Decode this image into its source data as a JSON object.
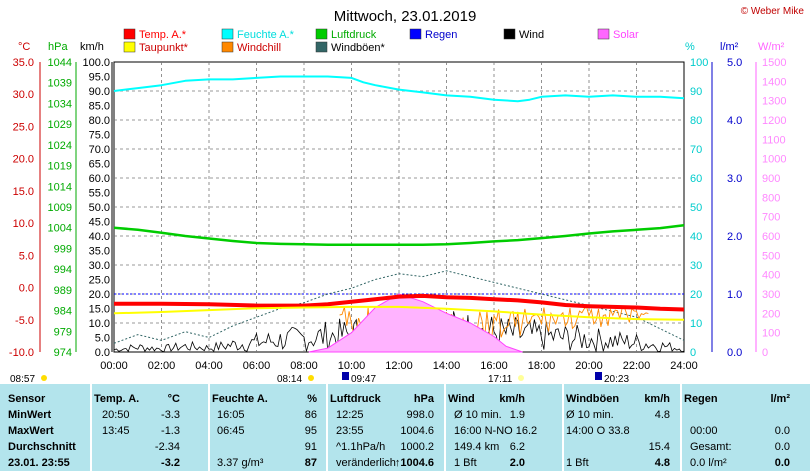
{
  "title": "Mittwoch, 23.01.2019",
  "credit": "© Weber Mike",
  "legend": [
    {
      "label": "Temp. A.*",
      "color": "#ff0000",
      "text_color": "#ff0000"
    },
    {
      "label": "Feuchte A.*",
      "color": "#00ffff",
      "text_color": "#00dddd"
    },
    {
      "label": "Luftdruck",
      "color": "#00cc00",
      "text_color": "#00aa00"
    },
    {
      "label": "Regen",
      "color": "#0000ff",
      "text_color": "#0000cc"
    },
    {
      "label": "Wind",
      "color": "#000000",
      "text_color": "#000000"
    },
    {
      "label": "Solar",
      "color": "#ff66ff",
      "text_color": "#ff44ff"
    },
    {
      "label": "Taupunkt*",
      "color": "#ffff00",
      "text_color": "#cc0000"
    },
    {
      "label": "Windchill",
      "color": "#ff8800",
      "text_color": "#cc0000"
    },
    {
      "label": "Windböen*",
      "color": "#336666",
      "text_color": "#000000"
    }
  ],
  "axis_units": {
    "temp": "°C",
    "hpa": "hPa",
    "kmh": "km/h",
    "pct": "%",
    "rain": "l/m²",
    "solar": "W/m²"
  },
  "chart_data": {
    "type": "line",
    "x_ticks": [
      "00:00",
      "02:00",
      "04:00",
      "06:00",
      "08:00",
      "10:00",
      "12:00",
      "14:00",
      "16:00",
      "18:00",
      "20:00",
      "22:00",
      "24:00"
    ],
    "temp_ticks": [
      "35.0",
      "30.0",
      "25.0",
      "20.0",
      "15.0",
      "10.0",
      "5.0",
      "0.0",
      "-5.0",
      "-10.0"
    ],
    "hpa_ticks": [
      "1044",
      "1039",
      "1034",
      "1029",
      "1024",
      "1019",
      "1014",
      "1009",
      "1004",
      "999",
      "994",
      "989",
      "984",
      "979",
      "974"
    ],
    "kmh_ticks": [
      "100.0",
      "95.0",
      "90.0",
      "85.0",
      "80.0",
      "75.0",
      "70.0",
      "65.0",
      "60.0",
      "55.0",
      "50.0",
      "45.0",
      "40.0",
      "35.0",
      "30.0",
      "25.0",
      "20.0",
      "15.0",
      "10.0",
      "5.0",
      "0.0"
    ],
    "pct_ticks": [
      "100",
      "90",
      "80",
      "70",
      "60",
      "50",
      "40",
      "30",
      "20",
      "10",
      "0"
    ],
    "rain_ticks": [
      "5.0",
      "4.0",
      "3.0",
      "2.0",
      "1.0",
      "0.0"
    ],
    "solar_ticks": [
      "1500",
      "1400",
      "1300",
      "1200",
      "1100",
      "1000",
      "900",
      "800",
      "700",
      "600",
      "500",
      "400",
      "300",
      "200",
      "100",
      "0"
    ],
    "x_range_h": [
      0,
      24
    ],
    "temp_range": [
      -10,
      35
    ],
    "kmh_range": [
      0,
      100
    ],
    "pct_range": [
      0,
      100
    ],
    "hpa_range": [
      974,
      1044
    ],
    "solar_range": [
      0,
      1500
    ],
    "grid": true,
    "series": [
      {
        "name": "Feuchte A.*",
        "color": "#00ffff",
        "axis": "pct",
        "x": [
          0,
          1,
          2,
          3,
          4,
          5,
          6,
          7,
          8,
          9,
          10,
          10.5,
          11,
          12,
          13,
          14,
          15,
          15.5,
          16,
          17,
          17.5,
          18,
          19,
          20,
          21,
          22,
          23,
          24
        ],
        "y": [
          90,
          91,
          92,
          93.5,
          94,
          94,
          94.5,
          95,
          95,
          95,
          94.5,
          93,
          92,
          90.5,
          89.5,
          88.5,
          88,
          87.5,
          87,
          86.5,
          87,
          88,
          88.5,
          88,
          88.5,
          88,
          88,
          87.5
        ]
      },
      {
        "name": "Luftdruck",
        "color": "#00cc00",
        "axis": "hpa",
        "x": [
          0,
          1,
          2,
          3,
          4,
          5,
          6,
          7,
          8,
          9,
          10,
          11,
          12,
          13,
          14,
          15,
          16,
          17,
          18,
          19,
          20,
          21,
          22,
          23,
          24
        ],
        "y": [
          1004,
          1003.5,
          1002.8,
          1002,
          1001.4,
          1000.8,
          1000.3,
          1000.1,
          1000,
          999.9,
          999.9,
          999.9,
          999.9,
          999.9,
          1000,
          1000.3,
          1000.7,
          1001,
          1001.5,
          1002,
          1002.6,
          1003.1,
          1003.5,
          1003.9,
          1004.6
        ]
      },
      {
        "name": "Temp. A.*",
        "color": "#ff0000",
        "axis": "temp",
        "x": [
          0,
          2,
          4,
          6,
          8,
          9,
          10,
          11,
          12,
          13,
          14,
          15,
          16,
          17,
          18,
          19,
          20,
          21,
          22,
          23,
          24
        ],
        "y": [
          -2.5,
          -2.5,
          -2.6,
          -2.8,
          -2.8,
          -2.6,
          -2.2,
          -1.8,
          -1.4,
          -1.3,
          -1.5,
          -1.6,
          -1.8,
          -2.0,
          -2.3,
          -2.7,
          -2.9,
          -3.0,
          -3.1,
          -3.3,
          -3.4
        ]
      },
      {
        "name": "Taupunkt*",
        "color": "#ffff00",
        "axis": "temp",
        "x": [
          0,
          2,
          4,
          6,
          8,
          10,
          12,
          14,
          16,
          18,
          20,
          22,
          24
        ],
        "y": [
          -4.0,
          -3.8,
          -3.5,
          -3.2,
          -3.1,
          -3.0,
          -3.0,
          -3.3,
          -3.7,
          -4.2,
          -4.6,
          -4.9,
          -5.0
        ]
      }
    ],
    "regen_level_lpm2": 1.0,
    "wind_gust_env": {
      "x": [
        0,
        1,
        2,
        3,
        4,
        5,
        6,
        7,
        8,
        9,
        10,
        11,
        12,
        13,
        14,
        15,
        16,
        17,
        18,
        19,
        20,
        21,
        22,
        23,
        24
      ],
      "y": [
        3,
        6,
        4,
        7,
        5,
        9,
        12,
        15,
        17,
        20,
        22,
        25,
        27,
        26,
        28,
        26,
        24,
        22,
        20,
        18,
        16,
        14,
        12,
        8,
        4
      ]
    },
    "solar_curve": {
      "x": [
        8.2,
        9,
        10,
        11,
        12,
        13,
        14,
        15,
        16,
        16.5,
        17.2
      ],
      "y": [
        0,
        20,
        100,
        230,
        300,
        260,
        200,
        150,
        80,
        30,
        0
      ]
    },
    "sun_marks": {
      "sunrise": "08:14",
      "sunset": "17:11",
      "moonrise": "09:47",
      "moonset": "20:23",
      "left_time": "08:57"
    }
  },
  "table": {
    "headers": [
      "Sensor",
      "Temp. A.",
      "°C",
      "Feuchte A.",
      "%",
      "Luftdruck",
      "hPa",
      "Wind",
      "km/h",
      "Windböen",
      "km/h",
      "Regen",
      "l/m²"
    ],
    "rows": [
      {
        "label": "MinWert",
        "c": [
          "20:50",
          "-3.3",
          "16:05",
          "86",
          "12:25",
          "998.0",
          "Ø 10 min.",
          "1.9",
          "Ø 10 min.",
          "4.8",
          "",
          ""
        ]
      },
      {
        "label": "MaxWert",
        "c": [
          "13:45",
          "-1.3",
          "06:45",
          "95",
          "23:55",
          "1004.6",
          "16:00    N-NO 16.2",
          "",
          "14:00      O 33.8",
          "",
          "00:00",
          "0.0"
        ]
      },
      {
        "label": "Durchschnitt",
        "c": [
          "",
          "-2.34",
          "",
          "91",
          "^1.1hPa/h",
          "1000.2",
          "149.4 km",
          "6.2",
          "",
          "15.4",
          "Gesamt:",
          "0.0"
        ]
      },
      {
        "label": "23.01. 23:55",
        "c": [
          "",
          "-3.2",
          "3.37 g/m³",
          "87",
          "veränderlich",
          "↑1004.6",
          "1 Bft",
          "2.0",
          "1 Bft",
          "4.8",
          "0.0 l/m²",
          "0.0"
        ]
      }
    ]
  }
}
